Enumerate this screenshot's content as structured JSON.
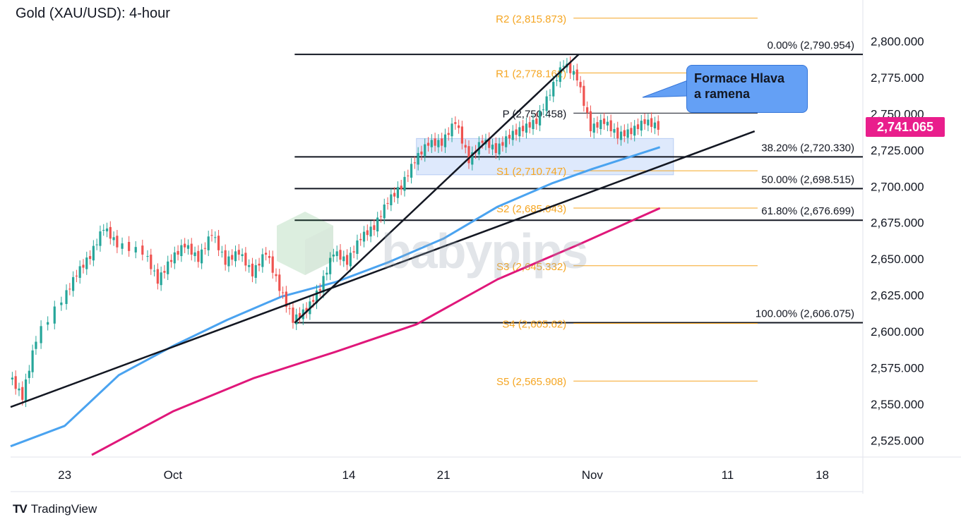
{
  "title": "Gold (XAU/USD): 4-hour",
  "footer": {
    "brand": "TradingView",
    "logo": "TV"
  },
  "watermark": "babypips",
  "last_price": "2,741.065",
  "callout": {
    "line1": "Formace Hlava",
    "line2": "a ramena"
  },
  "colors": {
    "ema_fast": "#4aa3f0",
    "ema_slow": "#e0177a",
    "pivot": "#f5a623",
    "up": "#26a69a",
    "down": "#ef5350",
    "last_price_bg": "#e91e8c",
    "zone": "#d6e4fb",
    "callout": "#64a0f5"
  },
  "chart_data": {
    "type": "line",
    "ylim": [
      2515,
      2825
    ],
    "y_ticks": [
      "2,525.000",
      "2,550.000",
      "2,575.000",
      "2,600.000",
      "2,625.000",
      "2,650.000",
      "2,675.000",
      "2,700.000",
      "2,725.000",
      "2,750.000",
      "2,775.000",
      "2,800.000"
    ],
    "y_tick_values": [
      2525,
      2550,
      2575,
      2600,
      2625,
      2650,
      2675,
      2700,
      2725,
      2750,
      2775,
      2800
    ],
    "x_ticks": [
      "23",
      "Oct",
      "14",
      "21",
      "Nov",
      "11",
      "18"
    ],
    "x_tick_dates": [
      "2024-09-23",
      "2024-10-01",
      "2024-10-14",
      "2024-10-21",
      "2024-11-01",
      "2024-11-11",
      "2024-11-18"
    ],
    "date_range": [
      "2024-09-19",
      "2024-11-21"
    ],
    "price_path": [
      [
        "2024-09-19",
        2570
      ],
      [
        "2024-09-20",
        2555
      ],
      [
        "2024-09-21",
        2595
      ],
      [
        "2024-09-23",
        2622
      ],
      [
        "2024-09-24",
        2640
      ],
      [
        "2024-09-25",
        2652
      ],
      [
        "2024-09-26",
        2672
      ],
      [
        "2024-09-27",
        2660
      ],
      [
        "2024-09-29",
        2655
      ],
      [
        "2024-09-30",
        2635
      ],
      [
        "2024-10-01",
        2650
      ],
      [
        "2024-10-02",
        2660
      ],
      [
        "2024-10-03",
        2650
      ],
      [
        "2024-10-04",
        2668
      ],
      [
        "2024-10-05",
        2648
      ],
      [
        "2024-10-06",
        2655
      ],
      [
        "2024-10-07",
        2640
      ],
      [
        "2024-10-08",
        2655
      ],
      [
        "2024-10-09",
        2630
      ],
      [
        "2024-10-10",
        2608
      ],
      [
        "2024-10-11",
        2615
      ],
      [
        "2024-10-12",
        2630
      ],
      [
        "2024-10-13",
        2655
      ],
      [
        "2024-10-14",
        2648
      ],
      [
        "2024-10-15",
        2665
      ],
      [
        "2024-10-16",
        2672
      ],
      [
        "2024-10-17",
        2690
      ],
      [
        "2024-10-18",
        2700
      ],
      [
        "2024-10-19",
        2718
      ],
      [
        "2024-10-20",
        2730
      ],
      [
        "2024-10-21",
        2730
      ],
      [
        "2024-10-22",
        2745
      ],
      [
        "2024-10-23",
        2718
      ],
      [
        "2024-10-24",
        2732
      ],
      [
        "2024-10-25",
        2725
      ],
      [
        "2024-10-26",
        2735
      ],
      [
        "2024-10-27",
        2740
      ],
      [
        "2024-10-28",
        2745
      ],
      [
        "2024-10-29",
        2765
      ],
      [
        "2024-10-30",
        2785
      ],
      [
        "2024-10-31",
        2775
      ],
      [
        "2024-11-01",
        2740
      ],
      [
        "2024-11-02",
        2745
      ],
      [
        "2024-11-03",
        2735
      ],
      [
        "2024-11-04",
        2738
      ],
      [
        "2024-11-05",
        2745
      ],
      [
        "2024-11-06",
        2741
      ]
    ],
    "ema_fast": [
      [
        "2024-09-19",
        2521
      ],
      [
        "2024-09-23",
        2535
      ],
      [
        "2024-09-27",
        2570
      ],
      [
        "2024-10-01",
        2590
      ],
      [
        "2024-10-05",
        2608
      ],
      [
        "2024-10-09",
        2624
      ],
      [
        "2024-10-13",
        2634
      ],
      [
        "2024-10-17",
        2648
      ],
      [
        "2024-10-21",
        2664
      ],
      [
        "2024-10-25",
        2686
      ],
      [
        "2024-10-29",
        2702
      ],
      [
        "2024-11-01",
        2712
      ],
      [
        "2024-11-06",
        2727
      ]
    ],
    "ema_slow": [
      [
        "2024-09-25",
        2515
      ],
      [
        "2024-10-01",
        2545
      ],
      [
        "2024-10-07",
        2568
      ],
      [
        "2024-10-13",
        2586
      ],
      [
        "2024-10-19",
        2605
      ],
      [
        "2024-10-25",
        2636
      ],
      [
        "2024-10-31",
        2660
      ],
      [
        "2024-11-06",
        2685
      ]
    ],
    "pivots": [
      {
        "label": "R2 (2,815.873)",
        "value": 2815.873
      },
      {
        "label": "R1 (2,778.162)",
        "value": 2778.162
      },
      {
        "label": "P (2,750.458)",
        "value": 2750.458
      },
      {
        "label": "S1 (2,710.747)",
        "value": 2710.747
      },
      {
        "label": "S2 (2,685.043)",
        "value": 2685.043
      },
      {
        "label": "S3 (2,645.332)",
        "value": 2645.332
      },
      {
        "label": "S4 (2,605.62)",
        "value": 2605.62
      },
      {
        "label": "S5 (2,565.908)",
        "value": 2565.908
      }
    ],
    "pivot_range": [
      "2024-10-28",
      "2024-11-08"
    ],
    "fib_levels": [
      {
        "label": "0.00% (2,790.954)",
        "value": 2790.954
      },
      {
        "label": "38.20% (2,720.330)",
        "value": 2720.33
      },
      {
        "label": "50.00% (2,698.515)",
        "value": 2698.515
      },
      {
        "label": "61.80% (2,676.699)",
        "value": 2676.699
      },
      {
        "label": "100.00% (2,606.075)",
        "value": 2606.075
      }
    ],
    "fib_start": "2024-10-10",
    "trendlines": [
      {
        "from": [
          "2024-09-19",
          2548
        ],
        "to": [
          "2024-11-13",
          2738
        ]
      },
      {
        "from": [
          "2024-10-10",
          2606
        ],
        "to": [
          "2024-10-31",
          2791
        ]
      }
    ],
    "zone": {
      "from": "2024-10-19",
      "to": "2024-11-07",
      "low": 2708,
      "high": 2733
    }
  }
}
